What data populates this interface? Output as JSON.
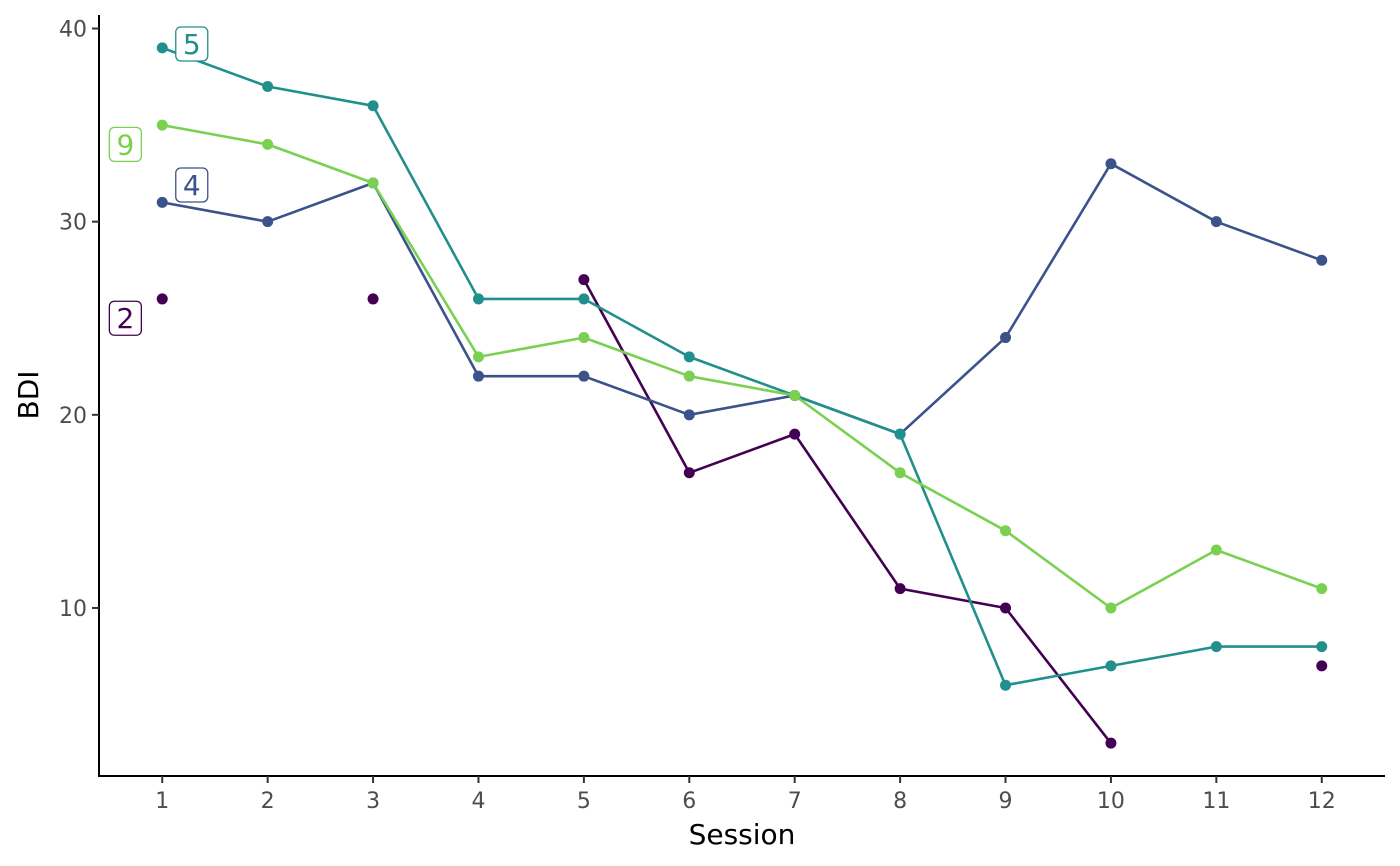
{
  "chart_data": {
    "type": "line",
    "xlabel": "Session",
    "ylabel": "BDI",
    "xlim": [
      0.4,
      12.6
    ],
    "ylim": [
      1.3,
      40.7
    ],
    "x_ticks": [
      1,
      2,
      3,
      4,
      5,
      6,
      7,
      8,
      9,
      10,
      11,
      12
    ],
    "y_ticks": [
      10,
      20,
      30,
      40
    ],
    "grid": false,
    "legend": "direct labels at the start of each series",
    "series": [
      {
        "name": "2",
        "color": "#440154",
        "points": [
          [
            1,
            26
          ],
          [
            3,
            26
          ],
          [
            5,
            27
          ],
          [
            6,
            17
          ],
          [
            7,
            19
          ],
          [
            8,
            11
          ],
          [
            9,
            10
          ],
          [
            10,
            3
          ],
          [
            12,
            7
          ]
        ],
        "label_pos": [
          0.65,
          25
        ]
      },
      {
        "name": "4",
        "color": "#3B528B",
        "points": [
          [
            1,
            31
          ],
          [
            2,
            30
          ],
          [
            3,
            32
          ],
          [
            4,
            22
          ],
          [
            5,
            22
          ],
          [
            6,
            20
          ],
          [
            7,
            21
          ],
          [
            8,
            19
          ],
          [
            9,
            24
          ],
          [
            10,
            33
          ],
          [
            11,
            30
          ],
          [
            12,
            28
          ]
        ],
        "label_pos": [
          1.28,
          31.9
        ]
      },
      {
        "name": "5",
        "color": "#21908C",
        "points": [
          [
            1,
            39
          ],
          [
            2,
            37
          ],
          [
            3,
            36
          ],
          [
            4,
            26
          ],
          [
            5,
            26
          ],
          [
            6,
            23
          ],
          [
            7,
            21
          ],
          [
            8,
            19
          ],
          [
            9,
            6
          ],
          [
            10,
            7
          ],
          [
            11,
            8
          ],
          [
            12,
            8
          ]
        ],
        "label_pos": [
          1.28,
          39.2
        ]
      },
      {
        "name": "9",
        "color": "#7AD151",
        "points": [
          [
            1,
            35
          ],
          [
            2,
            34
          ],
          [
            3,
            32
          ],
          [
            4,
            23
          ],
          [
            5,
            24
          ],
          [
            6,
            22
          ],
          [
            7,
            21
          ],
          [
            8,
            17
          ],
          [
            9,
            14
          ],
          [
            10,
            10
          ],
          [
            11,
            13
          ],
          [
            12,
            11
          ]
        ],
        "label_pos": [
          0.65,
          34
        ]
      }
    ]
  }
}
